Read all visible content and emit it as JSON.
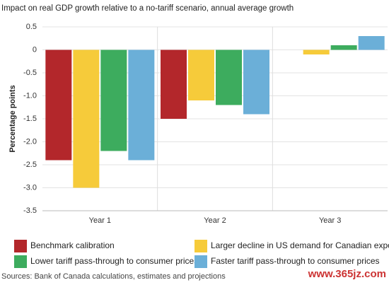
{
  "chart_data": {
    "type": "bar",
    "title": "Impact on real GDP growth relative to a no-tariff scenario, annual average growth",
    "y_label": "Percentage points",
    "categories": [
      "Year 1",
      "Year 2",
      "Year 3"
    ],
    "series": [
      {
        "name": "Benchmark calibration",
        "color": "#b3272b",
        "values": [
          -2.4,
          -1.5,
          0
        ]
      },
      {
        "name": "Larger decline in US demand for Canadian exports",
        "color": "#f6cb3a",
        "values": [
          -3.0,
          -1.1,
          -0.1
        ]
      },
      {
        "name": "Lower tariff pass-through to consumer prices",
        "color": "#3dac5e",
        "values": [
          -2.2,
          -1.2,
          0.1
        ]
      },
      {
        "name": "Faster tariff pass-through to consumer prices",
        "color": "#6bafd8",
        "values": [
          -2.4,
          -1.4,
          0.3
        ]
      }
    ],
    "ylim": [
      -3.5,
      0.5
    ],
    "yticks": [
      0.5,
      0,
      -0.5,
      {
        "value": -1,
        "label": "-1.0"
      },
      -1.5,
      {
        "value": -2,
        "label": "-2.0"
      },
      -2.5,
      {
        "value": -3,
        "label": "-3.0"
      },
      -3.5
    ],
    "grid": true,
    "source": "Sources: Bank of Canada calculations, estimates and projections",
    "watermark": "www.365jz.com"
  }
}
